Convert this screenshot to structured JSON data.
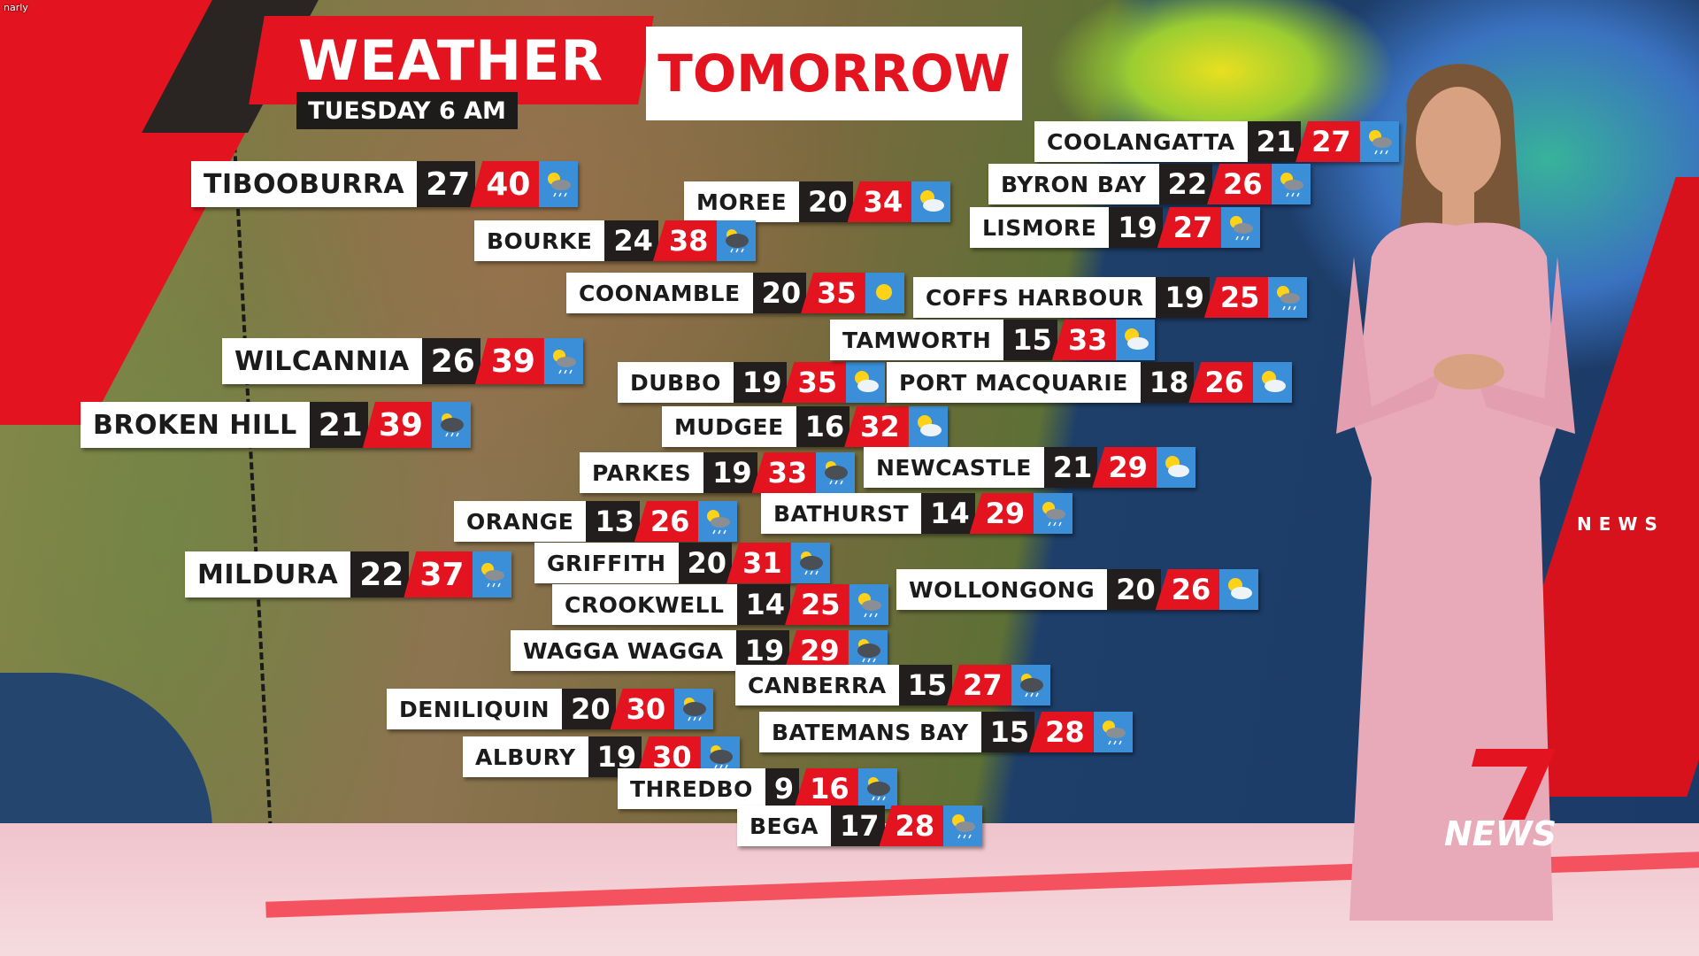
{
  "watermark": "narly",
  "header": {
    "title_left": "WEATHER",
    "title_right": "TOMORROW",
    "subtitle": "TUESDAY 6 AM"
  },
  "colors": {
    "brand_red": "#e3141f",
    "min_bg": "#221e1d",
    "icon_bg": "#3a8fd8"
  },
  "cities": [
    {
      "name": "TIBOOBURRA",
      "min": "27",
      "max": "40",
      "icon": "shower-icon"
    },
    {
      "name": "MOREE",
      "min": "20",
      "max": "34",
      "icon": "partly-cloudy-icon"
    },
    {
      "name": "BOURKE",
      "min": "24",
      "max": "38",
      "icon": "storm-icon"
    },
    {
      "name": "COONAMBLE",
      "min": "20",
      "max": "35",
      "icon": "sunny-icon"
    },
    {
      "name": "WILCANNIA",
      "min": "26",
      "max": "39",
      "icon": "shower-icon"
    },
    {
      "name": "BROKEN HILL",
      "min": "21",
      "max": "39",
      "icon": "storm-icon"
    },
    {
      "name": "DUBBO",
      "min": "19",
      "max": "35",
      "icon": "partly-cloudy-icon"
    },
    {
      "name": "MUDGEE",
      "min": "16",
      "max": "32",
      "icon": "partly-cloudy-icon"
    },
    {
      "name": "PARKES",
      "min": "19",
      "max": "33",
      "icon": "storm-icon"
    },
    {
      "name": "ORANGE",
      "min": "13",
      "max": "26",
      "icon": "shower-icon"
    },
    {
      "name": "GRIFFITH",
      "min": "20",
      "max": "31",
      "icon": "storm-icon"
    },
    {
      "name": "MILDURA",
      "min": "22",
      "max": "37",
      "icon": "shower-icon"
    },
    {
      "name": "CROOKWELL",
      "min": "14",
      "max": "25",
      "icon": "shower-icon"
    },
    {
      "name": "WAGGA WAGGA",
      "min": "19",
      "max": "29",
      "icon": "storm-icon"
    },
    {
      "name": "DENILIQUIN",
      "min": "20",
      "max": "30",
      "icon": "storm-icon"
    },
    {
      "name": "ALBURY",
      "min": "19",
      "max": "30",
      "icon": "storm-icon"
    },
    {
      "name": "THREDBO",
      "min": "9",
      "max": "16",
      "icon": "storm-icon"
    },
    {
      "name": "BEGA",
      "min": "17",
      "max": "28",
      "icon": "shower-icon"
    },
    {
      "name": "COOLANGATTA",
      "min": "21",
      "max": "27",
      "icon": "shower-icon"
    },
    {
      "name": "BYRON BAY",
      "min": "22",
      "max": "26",
      "icon": "shower-icon"
    },
    {
      "name": "LISMORE",
      "min": "19",
      "max": "27",
      "icon": "shower-icon"
    },
    {
      "name": "COFFS HARBOUR",
      "min": "19",
      "max": "25",
      "icon": "shower-icon"
    },
    {
      "name": "TAMWORTH",
      "min": "15",
      "max": "33",
      "icon": "partly-cloudy-icon"
    },
    {
      "name": "PORT MACQUARIE",
      "min": "18",
      "max": "26",
      "icon": "partly-cloudy-icon"
    },
    {
      "name": "NEWCASTLE",
      "min": "21",
      "max": "29",
      "icon": "partly-cloudy-icon"
    },
    {
      "name": "BATHURST",
      "min": "14",
      "max": "29",
      "icon": "shower-icon"
    },
    {
      "name": "WOLLONGONG",
      "min": "20",
      "max": "26",
      "icon": "partly-cloudy-icon"
    },
    {
      "name": "CANBERRA",
      "min": "15",
      "max": "27",
      "icon": "storm-icon"
    },
    {
      "name": "BATEMANS BAY",
      "min": "15",
      "max": "28",
      "icon": "shower-icon"
    }
  ],
  "side_panel": {
    "label": "NEWS"
  },
  "logo": {
    "number": "7",
    "text": "NEWS"
  }
}
